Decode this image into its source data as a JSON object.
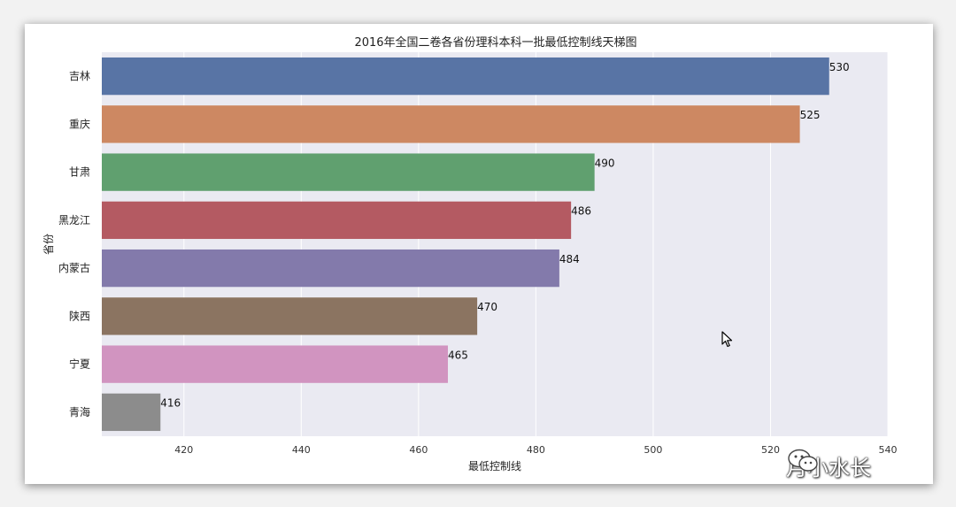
{
  "chart_data": {
    "type": "bar",
    "orientation": "horizontal",
    "title": "2016年全国二卷各省份理科本科一批最低控制线天梯图",
    "xlabel": "最低控制线",
    "ylabel": "省份",
    "xlim": [
      406,
      540
    ],
    "xticks": [
      420,
      440,
      460,
      480,
      500,
      520,
      540
    ],
    "grid": true,
    "categories": [
      "吉林",
      "重庆",
      "甘肃",
      "黑龙江",
      "内蒙古",
      "陕西",
      "宁夏",
      "青海"
    ],
    "values": [
      530,
      525,
      490,
      486,
      484,
      470,
      465,
      416
    ],
    "colors": [
      "#5874a5",
      "#cd8862",
      "#60a06f",
      "#b45a62",
      "#837aab",
      "#8b7461",
      "#d194c0",
      "#8c8c8c"
    ],
    "background": "#eaeaf2"
  },
  "watermark": {
    "text": "月小水长",
    "icon": "wechat-icon"
  },
  "cursor": {
    "icon": "mouse-pointer-icon"
  }
}
